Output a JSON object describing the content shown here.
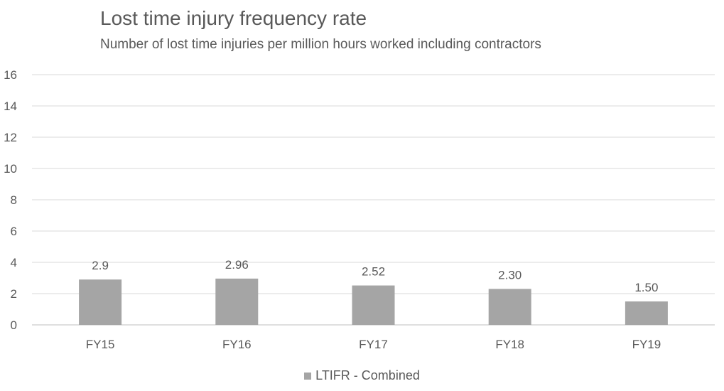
{
  "chart_data": {
    "type": "bar",
    "title": "Lost time injury frequency rate",
    "subtitle": "Number of lost time injuries per million hours worked including contractors",
    "xlabel": "",
    "ylabel": "",
    "categories": [
      "FY15",
      "FY16",
      "FY17",
      "FY18",
      "FY19"
    ],
    "series": [
      {
        "name": "LTIFR - Combined",
        "values": [
          2.9,
          2.96,
          2.52,
          2.3,
          1.5
        ],
        "labels": [
          "2.9",
          "2.96",
          "2.52",
          "2.30",
          "1.50"
        ]
      }
    ],
    "ylim": [
      0,
      16
    ],
    "yticks": [
      "0",
      "2",
      "4",
      "6",
      "8",
      "10",
      "12",
      "14",
      "16"
    ],
    "grid": true,
    "legend_position": "bottom-center",
    "colors": {
      "bar": "#a5a5a5",
      "grid": "#d9d9d9",
      "text": "#595959",
      "axis": "#bfbfbf"
    }
  }
}
